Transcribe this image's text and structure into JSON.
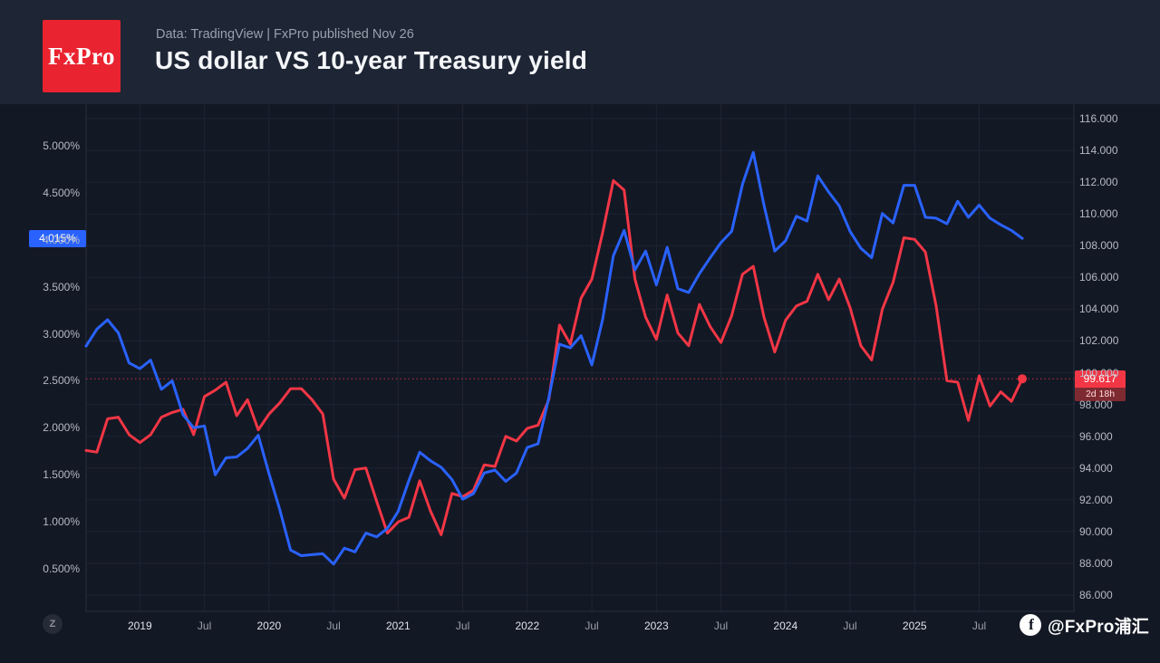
{
  "header": {
    "logo_text": "FxPro",
    "logo_bg": "#e9232f",
    "subtitle": "Data: TradingView | FxPro published Nov 26",
    "title": "US dollar VS 10-year Treasury yield"
  },
  "toolbar": {
    "z_badge": "Z"
  },
  "watermark": {
    "icon_glyph": "f",
    "handle": "@FxPro浦汇"
  },
  "chart_data": {
    "type": "line",
    "title": "US dollar VS 10-year Treasury yield",
    "grid": true,
    "x_months": [
      "2018-08",
      "2018-09",
      "2018-10",
      "2018-11",
      "2018-12",
      "2019-01",
      "2019-02",
      "2019-03",
      "2019-04",
      "2019-05",
      "2019-06",
      "2019-07",
      "2019-08",
      "2019-09",
      "2019-10",
      "2019-11",
      "2019-12",
      "2020-01",
      "2020-02",
      "2020-03",
      "2020-04",
      "2020-05",
      "2020-06",
      "2020-07",
      "2020-08",
      "2020-09",
      "2020-10",
      "2020-11",
      "2020-12",
      "2021-01",
      "2021-02",
      "2021-03",
      "2021-04",
      "2021-05",
      "2021-06",
      "2021-07",
      "2021-08",
      "2021-09",
      "2021-10",
      "2021-11",
      "2021-12",
      "2022-01",
      "2022-02",
      "2022-03",
      "2022-04",
      "2022-05",
      "2022-06",
      "2022-07",
      "2022-08",
      "2022-09",
      "2022-10",
      "2022-11",
      "2022-12",
      "2023-01",
      "2023-02",
      "2023-03",
      "2023-04",
      "2023-05",
      "2023-06",
      "2023-07",
      "2023-08",
      "2023-09",
      "2023-10",
      "2023-11",
      "2023-12",
      "2024-01",
      "2024-02",
      "2024-03",
      "2024-04",
      "2024-05",
      "2024-06",
      "2024-07",
      "2024-08",
      "2024-09",
      "2024-10",
      "2024-11",
      "2024-12",
      "2025-01",
      "2025-02",
      "2025-03",
      "2025-04",
      "2025-05",
      "2025-06",
      "2025-07",
      "2025-08",
      "2025-09",
      "2025-10",
      "2025-11"
    ],
    "x_ticks": [
      {
        "index": 5,
        "label": "2019",
        "major": true
      },
      {
        "index": 11,
        "label": "Jul",
        "major": false
      },
      {
        "index": 17,
        "label": "2020",
        "major": true
      },
      {
        "index": 23,
        "label": "Jul",
        "major": false
      },
      {
        "index": 29,
        "label": "2021",
        "major": true
      },
      {
        "index": 35,
        "label": "Jul",
        "major": false
      },
      {
        "index": 41,
        "label": "2022",
        "major": true
      },
      {
        "index": 47,
        "label": "Jul",
        "major": false
      },
      {
        "index": 53,
        "label": "2023",
        "major": true
      },
      {
        "index": 59,
        "label": "Jul",
        "major": false
      },
      {
        "index": 65,
        "label": "2024",
        "major": true
      },
      {
        "index": 71,
        "label": "Jul",
        "major": false
      },
      {
        "index": 77,
        "label": "2025",
        "major": true
      },
      {
        "index": 83,
        "label": "Jul",
        "major": false
      }
    ],
    "left_axis": {
      "unit": "%",
      "ticks": [
        {
          "value": 5.0,
          "label": "5.000%"
        },
        {
          "value": 4.5,
          "label": "4.500%"
        },
        {
          "value": 4.0,
          "label": "4.000%"
        },
        {
          "value": 3.5,
          "label": "3.500%"
        },
        {
          "value": 3.0,
          "label": "3.000%"
        },
        {
          "value": 2.5,
          "label": "2.500%"
        },
        {
          "value": 2.0,
          "label": "2.000%"
        },
        {
          "value": 1.5,
          "label": "1.500%"
        },
        {
          "value": 1.0,
          "label": "1.000%"
        },
        {
          "value": 0.5,
          "label": "0.500%"
        }
      ]
    },
    "right_axis": {
      "ticks": [
        {
          "value": 116,
          "label": "116.000"
        },
        {
          "value": 114,
          "label": "114.000"
        },
        {
          "value": 112,
          "label": "112.000"
        },
        {
          "value": 110,
          "label": "110.000"
        },
        {
          "value": 108,
          "label": "108.000"
        },
        {
          "value": 106,
          "label": "106.000"
        },
        {
          "value": 104,
          "label": "104.000"
        },
        {
          "value": 102,
          "label": "102.000"
        },
        {
          "value": 100,
          "label": "100.000"
        },
        {
          "value": 98,
          "label": "98.000"
        },
        {
          "value": 96,
          "label": "96.000"
        },
        {
          "value": 94,
          "label": "94.000"
        },
        {
          "value": 92,
          "label": "92.000"
        },
        {
          "value": 90,
          "label": "90.000"
        },
        {
          "value": 88,
          "label": "88.000"
        },
        {
          "value": 86,
          "label": "86.000"
        }
      ]
    },
    "series": [
      {
        "name": "10-year Treasury yield",
        "axis": "left",
        "color": "#2962ff",
        "price_label": "4.015%",
        "values": [
          2.87,
          3.05,
          3.15,
          3.01,
          2.69,
          2.63,
          2.72,
          2.41,
          2.5,
          2.14,
          2.0,
          2.02,
          1.5,
          1.68,
          1.69,
          1.78,
          1.92,
          1.51,
          1.13,
          0.7,
          0.64,
          0.65,
          0.66,
          0.55,
          0.72,
          0.68,
          0.88,
          0.84,
          0.93,
          1.11,
          1.44,
          1.74,
          1.65,
          1.58,
          1.45,
          1.24,
          1.3,
          1.52,
          1.55,
          1.43,
          1.52,
          1.79,
          1.83,
          2.32,
          2.89,
          2.85,
          2.98,
          2.67,
          3.15,
          3.83,
          4.1,
          3.68,
          3.88,
          3.52,
          3.92,
          3.48,
          3.44,
          3.64,
          3.81,
          3.97,
          4.09,
          4.59,
          4.93,
          4.37,
          3.88,
          3.99,
          4.25,
          4.2,
          4.68,
          4.51,
          4.36,
          4.09,
          3.91,
          3.81,
          4.28,
          4.18,
          4.58,
          4.58,
          4.24,
          4.23,
          4.17,
          4.41,
          4.24,
          4.37,
          4.23,
          4.16,
          4.1,
          4.015
        ]
      },
      {
        "name": "US dollar index",
        "axis": "right",
        "color": "#f23645",
        "price_label": "99.617",
        "countdown": "2d 18h",
        "price_line_value": 99.617,
        "end_marker": true,
        "values": [
          95.1,
          95.0,
          97.1,
          97.2,
          96.1,
          95.6,
          96.1,
          97.2,
          97.5,
          97.7,
          96.1,
          98.5,
          98.9,
          99.4,
          97.3,
          98.3,
          96.4,
          97.4,
          98.1,
          99.0,
          99.0,
          98.3,
          97.4,
          93.3,
          92.1,
          93.9,
          94.0,
          91.9,
          89.9,
          90.6,
          90.9,
          93.2,
          91.3,
          89.8,
          92.4,
          92.2,
          92.6,
          94.2,
          94.1,
          96.0,
          95.7,
          96.5,
          96.7,
          98.3,
          103.0,
          101.8,
          104.7,
          105.9,
          108.8,
          112.1,
          111.5,
          105.9,
          103.5,
          102.1,
          104.9,
          102.5,
          101.7,
          104.3,
          102.9,
          101.9,
          103.6,
          106.2,
          106.7,
          103.5,
          101.3,
          103.3,
          104.2,
          104.5,
          106.2,
          104.6,
          105.9,
          104.1,
          101.7,
          100.8,
          104.0,
          105.7,
          108.5,
          108.4,
          107.6,
          104.2,
          99.5,
          99.4,
          97.0,
          99.8,
          97.9,
          98.8,
          98.2,
          99.617
        ]
      }
    ]
  }
}
